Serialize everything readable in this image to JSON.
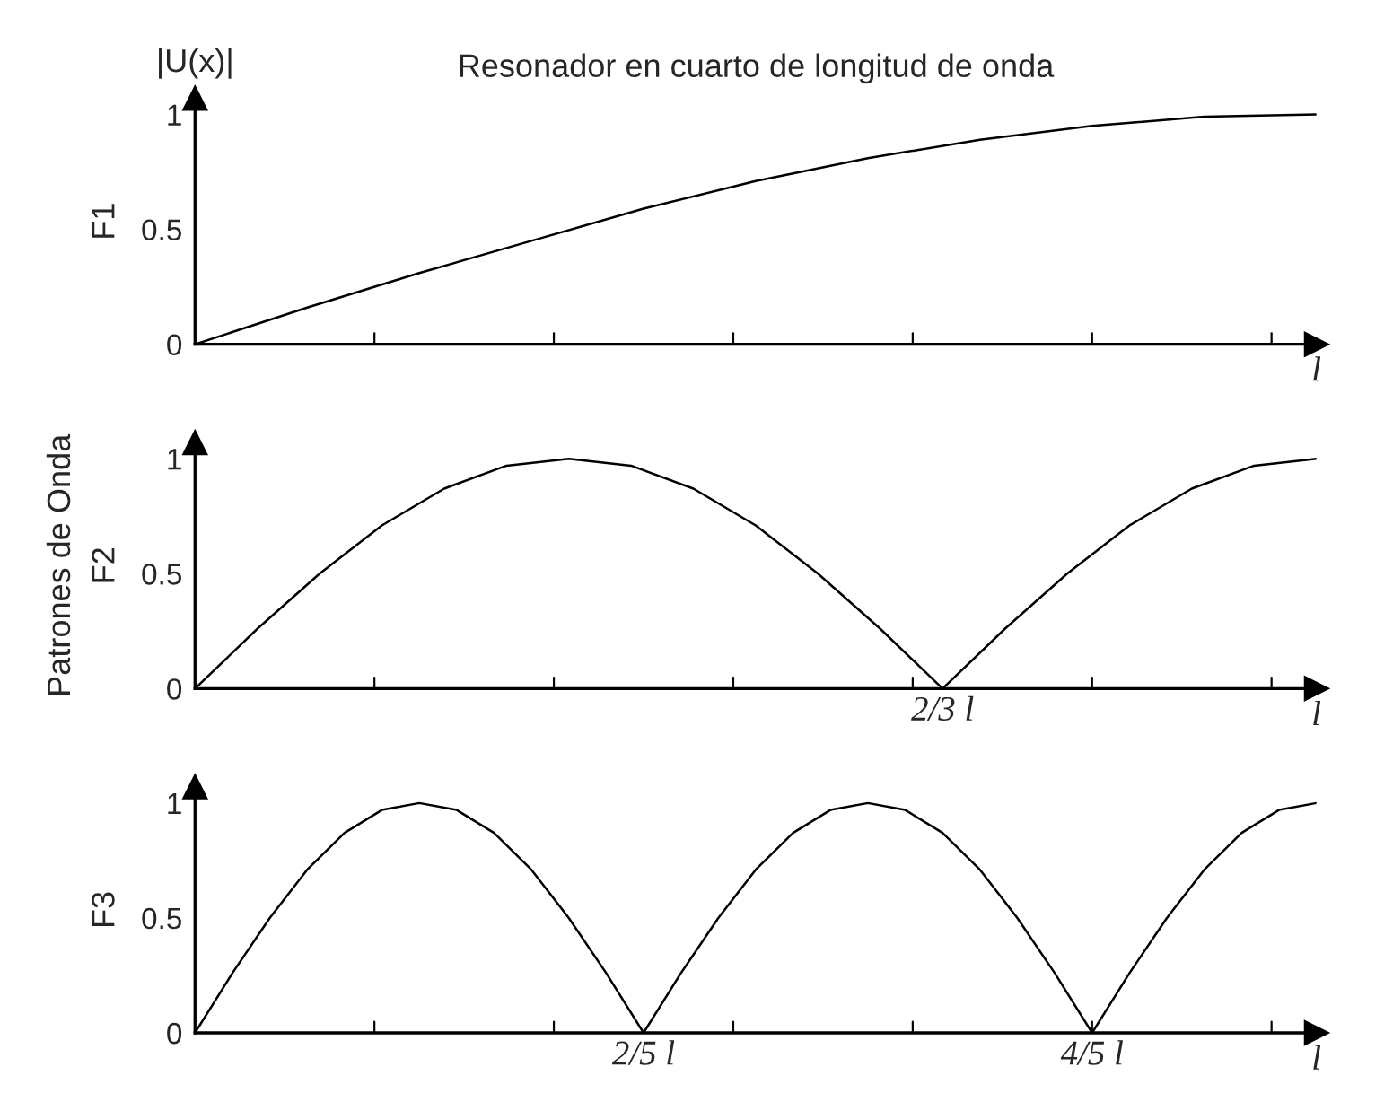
{
  "chart_data": [
    {
      "type": "line",
      "title": "Resonador en cuarto de longitud de onda",
      "ylabel": "F1",
      "xlabel": "l",
      "annotations": [
        "|U(x)|"
      ],
      "categories": [
        null,
        null,
        null,
        null,
        null,
        null,
        null,
        null,
        null,
        null,
        null
      ],
      "series": [
        {
          "color": "#000000",
          "values": [
            0,
            0.16,
            0.31,
            0.45,
            0.59,
            0.71,
            0.81,
            0.89,
            0.95,
            0.99,
            1
          ]
        }
      ],
      "ylim": [
        0,
        1.07
      ],
      "yticks": [
        0,
        0.5,
        1
      ],
      "tick_labels": "y",
      "grid": false,
      "legend": false,
      "marker": "none",
      "line_style": "solid"
    },
    {
      "type": "line",
      "ylabel": "Patrones de Onda\nF2",
      "xlabel": "l",
      "annotations": [
        "2/3 l"
      ],
      "categories": [
        null,
        null,
        null,
        null,
        null,
        null,
        null,
        null,
        null,
        null,
        null,
        null,
        null,
        null,
        null,
        null,
        null,
        null,
        null
      ],
      "series": [
        {
          "color": "#000000",
          "values": [
            0,
            0.26,
            0.5,
            0.71,
            0.87,
            0.97,
            1,
            0.97,
            0.87,
            0.71,
            0.5,
            0.26,
            0,
            0.26,
            0.5,
            0.71,
            0.87,
            0.97,
            1
          ]
        }
      ],
      "ylim": [
        0,
        1.07
      ],
      "yticks": [
        0,
        0.5,
        1
      ],
      "tick_labels": "y",
      "grid": false,
      "legend": false,
      "marker": "none",
      "line_style": "solid"
    },
    {
      "type": "line",
      "ylabel": "F3",
      "xlabel": "l",
      "annotations": [
        "2/5 l",
        "4/5 l"
      ],
      "categories": [
        null,
        null,
        null,
        null,
        null,
        null,
        null,
        null,
        null,
        null,
        null,
        null,
        null,
        null,
        null,
        null,
        null,
        null,
        null,
        null,
        null,
        null,
        null,
        null,
        null,
        null,
        null,
        null,
        null,
        null,
        null
      ],
      "series": [
        {
          "color": "#000000",
          "values": [
            0,
            0.26,
            0.5,
            0.71,
            0.87,
            0.97,
            1,
            0.97,
            0.87,
            0.71,
            0.5,
            0.26,
            0,
            0.26,
            0.5,
            0.71,
            0.87,
            0.97,
            1,
            0.97,
            0.87,
            0.71,
            0.5,
            0.26,
            0,
            0.26,
            0.5,
            0.71,
            0.87,
            0.97,
            1
          ]
        }
      ],
      "ylim": [
        0,
        1.07
      ],
      "yticks": [
        0,
        0.5,
        1
      ],
      "tick_labels": "y",
      "grid": false,
      "legend": false,
      "marker": "none",
      "line_style": "solid"
    }
  ]
}
